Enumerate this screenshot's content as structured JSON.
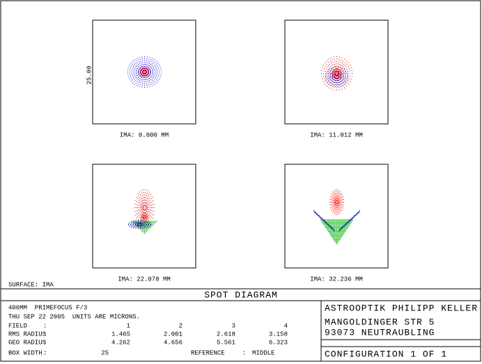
{
  "panels": [
    {
      "label": "IMA: 0.000 MM"
    },
    {
      "label": "IMA: 11.012 MM"
    },
    {
      "label": "IMA: 22.078 MM"
    },
    {
      "label": "IMA: 32.236 MM"
    }
  ],
  "box_label": "25.00",
  "surface": "SURFACE: IMA",
  "title": "SPOT DIAGRAM",
  "info": [
    "400MM  PRIMEFOCUS F/3",
    "THU SEP 22 2005  UNITS ARE MICRONS."
  ],
  "table": {
    "rows": [
      [
        "FIELD",
        ":",
        1,
        2,
        3,
        4
      ],
      [
        "RMS RADIUS",
        ":",
        1.465,
        2.001,
        2.618,
        3.158
      ],
      [
        "GEO RADIUS",
        ":",
        4.262,
        4.656,
        5.561,
        6.323
      ]
    ],
    "box_width": [
      "BOX WIDTH",
      ":",
      25
    ],
    "reference": [
      "REFERENCE",
      ":",
      "MIDDLE"
    ]
  },
  "company": [
    "ASTROOPTIK PHILIPP KELLER",
    "MANGOLDINGER STR 5",
    "93073 NEUTRAUBLING"
  ],
  "configuration": "CONFIGURATION 1 OF 1"
}
